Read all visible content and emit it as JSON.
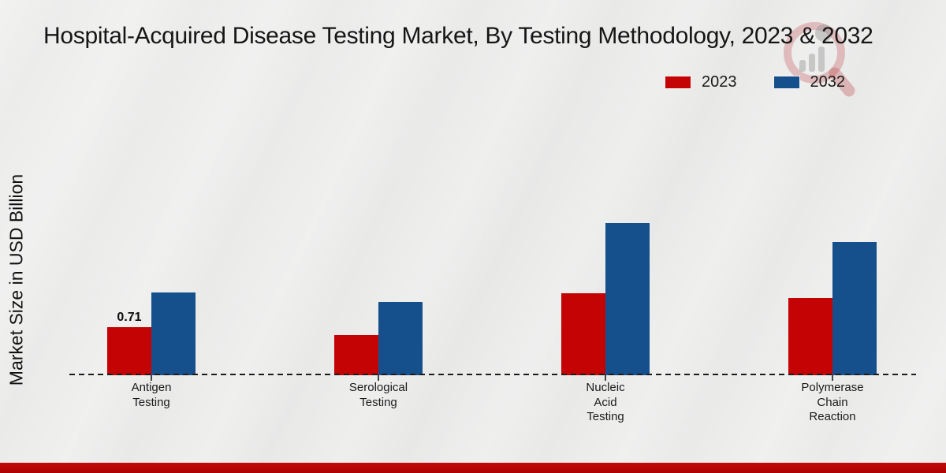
{
  "page": {
    "title": "Hospital-Acquired Disease Testing Market, By Testing Methodology, 2023 & 2032",
    "y_axis_label": "Market Size in USD Billion"
  },
  "legend": [
    {
      "label": "2023",
      "color": "#c40404"
    },
    {
      "label": "2032",
      "color": "#16508c"
    }
  ],
  "chart_data": {
    "type": "bar",
    "title": "Hospital-Acquired Disease Testing Market, By Testing Methodology, 2023 & 2032",
    "ylabel": "Market Size in USD Billion",
    "xlabel": "",
    "categories": [
      "Antigen\nTesting",
      "Serological\nTesting",
      "Nucleic\nAcid\nTesting",
      "Polymerase\nChain\nReaction"
    ],
    "series": [
      {
        "name": "2023",
        "color": "#c40404",
        "values": [
          0.71,
          0.59,
          1.21,
          1.14
        ],
        "data_labels": [
          "0.71",
          "",
          "",
          ""
        ]
      },
      {
        "name": "2032",
        "color": "#16508c",
        "values": [
          1.22,
          1.08,
          2.24,
          1.97
        ],
        "data_labels": [
          "",
          "",
          "",
          ""
        ]
      }
    ],
    "ylim": [
      0,
      2.6
    ],
    "grid": false,
    "legend_position": "top-right",
    "baseline_style": "dashed",
    "colors": {
      "series_2023": "#c40404",
      "series_2032": "#16508c",
      "footer_accent": "#b60909"
    }
  },
  "watermark": {
    "icon": "market-research-future-magnifier-logo"
  }
}
